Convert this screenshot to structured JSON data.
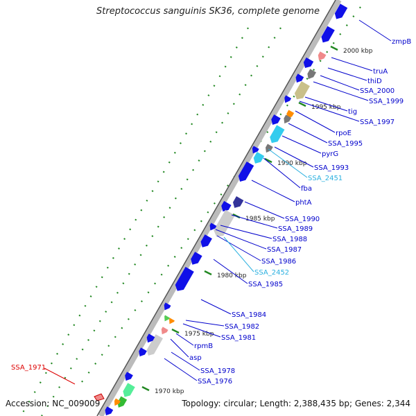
{
  "title": "Streptococcus sanguinis SK36, complete genome",
  "footer": {
    "accession": "Accession: NC_009009",
    "topology": "Topology: circular; Length: 2,388,435 bp; Genes: 2,344"
  },
  "colors": {
    "gene_blue": "#1010e8",
    "label_blue": "#0000cc",
    "label_cyan": "#2ab0e0",
    "label_red": "#dd0000",
    "backbone": "#aaaaaa",
    "tick_green": "#228822"
  },
  "kbp_ticks": [
    "2000 kbp",
    "1995 kbp",
    "1990 kbp",
    "1985 kbp",
    "1980 kbp",
    "1975 kbp",
    "1970 kbp"
  ],
  "gene_labels": [
    {
      "text": "zmpB",
      "color": "blue"
    },
    {
      "text": "truA",
      "color": "blue"
    },
    {
      "text": "thiD",
      "color": "blue"
    },
    {
      "text": "SSA_2000",
      "color": "blue"
    },
    {
      "text": "SSA_1999",
      "color": "blue"
    },
    {
      "text": "tig",
      "color": "blue"
    },
    {
      "text": "SSA_1997",
      "color": "blue"
    },
    {
      "text": "rpoE",
      "color": "blue"
    },
    {
      "text": "SSA_1995",
      "color": "blue"
    },
    {
      "text": "pyrG",
      "color": "blue"
    },
    {
      "text": "SSA_1993",
      "color": "blue"
    },
    {
      "text": "SSA_2451",
      "color": "cyan"
    },
    {
      "text": "fba",
      "color": "blue"
    },
    {
      "text": "phtA",
      "color": "blue"
    },
    {
      "text": "SSA_1990",
      "color": "blue"
    },
    {
      "text": "SSA_1989",
      "color": "blue"
    },
    {
      "text": "SSA_1988",
      "color": "blue"
    },
    {
      "text": "SSA_1987",
      "color": "blue"
    },
    {
      "text": "SSA_1986",
      "color": "blue"
    },
    {
      "text": "SSA_2452",
      "color": "cyan"
    },
    {
      "text": "SSA_1985",
      "color": "blue"
    },
    {
      "text": "SSA_1984",
      "color": "blue"
    },
    {
      "text": "SSA_1982",
      "color": "blue"
    },
    {
      "text": "SSA_1981",
      "color": "blue"
    },
    {
      "text": "rpmB",
      "color": "blue"
    },
    {
      "text": "asp",
      "color": "blue"
    },
    {
      "text": "SSA_1978",
      "color": "blue"
    },
    {
      "text": "SSA_1976",
      "color": "blue"
    },
    {
      "text": "SSA_1971",
      "color": "red"
    }
  ]
}
